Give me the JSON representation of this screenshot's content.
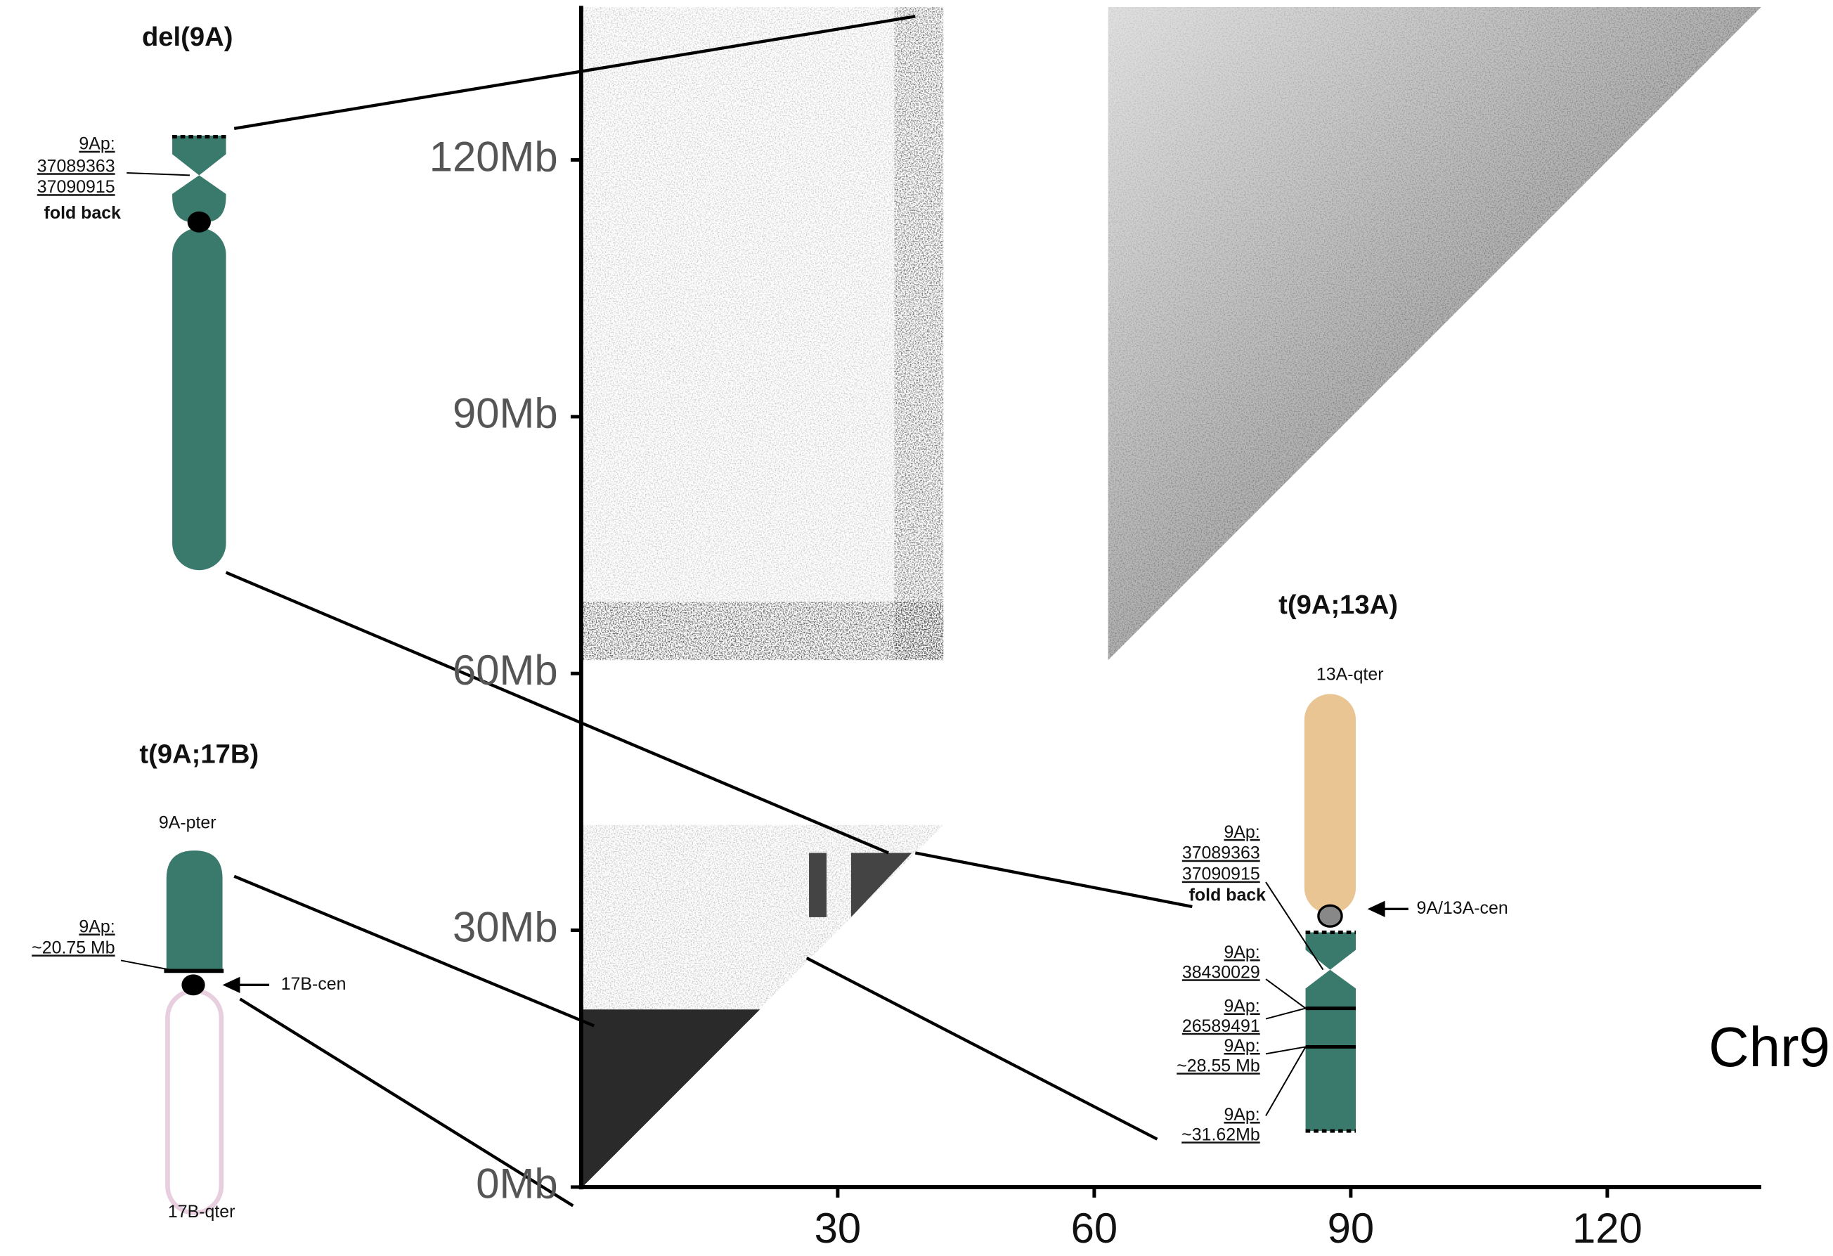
{
  "axes": {
    "xlim": [
      0,
      138
    ],
    "ylim": [
      0,
      138
    ],
    "xticks": [
      30,
      60,
      90,
      120
    ],
    "yticks": [
      {
        "value": 0,
        "label": "0Mb"
      },
      {
        "value": 30,
        "label": "30Mb"
      },
      {
        "value": 60,
        "label": "60Mb"
      },
      {
        "value": 90,
        "label": "90Mb"
      },
      {
        "value": 120,
        "label": "120Mb"
      }
    ],
    "label": "Chr9"
  },
  "del9A": {
    "title": "del(9A)",
    "breakpoint": [
      "9Ap:",
      "37089363",
      "37090915"
    ],
    "note": "fold back"
  },
  "t9A17B": {
    "title": "t(9A;17B)",
    "top": "9A-pter",
    "breakpoint": [
      "9Ap:",
      "~20.75 Mb"
    ],
    "centromere": "17B-cen",
    "bottom": "17B-qter"
  },
  "t9A13A": {
    "title": "t(9A;13A)",
    "top": "13A-qter",
    "centromere": "9A/13A-cen",
    "breakpoints": [
      [
        "9Ap:",
        "37089363",
        "37090915"
      ],
      [
        "9Ap:",
        "38430029"
      ],
      [
        "9Ap:",
        "26589491"
      ],
      [
        "9Ap:",
        "~28.55 Mb"
      ],
      [
        "9Ap:",
        "~31.62Mb"
      ]
    ],
    "note": "fold back"
  }
}
